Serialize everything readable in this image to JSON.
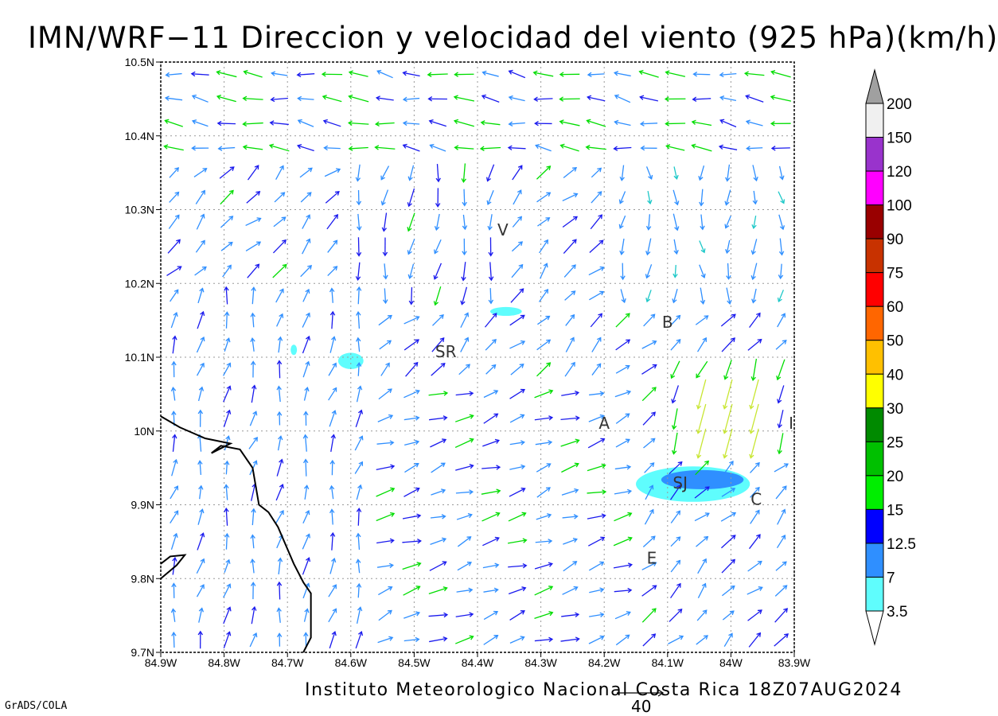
{
  "title": "IMN/WRF−11 Direccion y velocidad del viento (925 hPa)(km/h)",
  "footer": "Instituto Meteorologico Nacional Costa Rica 18Z07AUG2024",
  "credit": "GrADS/COLA",
  "reference_vector": {
    "value": 40,
    "label": "40"
  },
  "axes": {
    "lon_ticks": [
      "84.9W",
      "84.8W",
      "84.7W",
      "84.6W",
      "84.5W",
      "84.4W",
      "84.3W",
      "84.2W",
      "84.1W",
      "84W",
      "83.9W"
    ],
    "lat_ticks": [
      "10.5N",
      "10.4N",
      "10.3N",
      "10.2N",
      "10.1N",
      "10N",
      "9.9N",
      "9.8N",
      "9.7N"
    ],
    "lon_range": [
      -84.9,
      -83.9
    ],
    "lat_range": [
      9.7,
      10.5
    ],
    "grid": true
  },
  "colorbar": {
    "levels": [
      "3.5",
      "7",
      "12.5",
      "15",
      "20",
      "25",
      "30",
      "40",
      "50",
      "60",
      "75",
      "90",
      "100",
      "120",
      "150",
      "200"
    ],
    "colors": [
      "#ffffff",
      "#5ffdfd",
      "#2f8fff",
      "#0000ff",
      "#00ee00",
      "#00c000",
      "#008a00",
      "#ffff00",
      "#ffc000",
      "#ff6600",
      "#ff0000",
      "#c83200",
      "#990000",
      "#ff00ff",
      "#9933cc",
      "#f0f0f0",
      "#a0a0a0"
    ]
  },
  "cities": [
    {
      "label": "V",
      "lon": -84.36,
      "lat": 10.265
    },
    {
      "label": "B",
      "lon": -84.1,
      "lat": 10.14
    },
    {
      "label": "SR",
      "lon": -84.45,
      "lat": 10.1
    },
    {
      "label": "A",
      "lon": -84.2,
      "lat": 10.003
    },
    {
      "label": "SJ",
      "lon": -84.08,
      "lat": 9.922
    },
    {
      "label": "C",
      "lon": -83.96,
      "lat": 9.9
    },
    {
      "label": "E",
      "lon": -84.125,
      "lat": 9.82
    },
    {
      "label": "I",
      "lon": -83.905,
      "lat": 10.003
    }
  ],
  "shaded_regions": [
    {
      "color": "#5ffdfd",
      "center": [
        -84.06,
        9.928
      ],
      "radius": [
        0.09,
        0.024
      ]
    },
    {
      "color": "#2f8fff",
      "center": [
        -84.045,
        9.934
      ],
      "radius": [
        0.065,
        0.013
      ]
    },
    {
      "color": "#5ffdfd",
      "center": [
        -84.355,
        10.162
      ],
      "radius": [
        0.025,
        0.006
      ]
    },
    {
      "color": "#5ffdfd",
      "center": [
        -84.6,
        10.095
      ],
      "radius": [
        0.02,
        0.011
      ]
    },
    {
      "color": "#5ffdfd",
      "center": [
        -84.69,
        10.11
      ],
      "radius": [
        0.005,
        0.007
      ]
    }
  ],
  "coastlines": [
    [
      [
        -84.9,
        10.02
      ],
      [
        -84.87,
        10.005
      ],
      [
        -84.83,
        9.99
      ],
      [
        -84.79,
        9.983
      ],
      [
        -84.82,
        9.97
      ],
      [
        -84.805,
        9.98
      ],
      [
        -84.775,
        9.975
      ],
      [
        -84.755,
        9.95
      ],
      [
        -84.745,
        9.9
      ],
      [
        -84.73,
        9.89
      ],
      [
        -84.715,
        9.87
      ],
      [
        -84.7,
        9.84
      ],
      [
        -84.69,
        9.82
      ],
      [
        -84.675,
        9.795
      ],
      [
        -84.663,
        9.78
      ],
      [
        -84.663,
        9.72
      ],
      [
        -84.675,
        9.7
      ]
    ],
    [
      [
        -84.9,
        9.82
      ],
      [
        -84.885,
        9.83
      ],
      [
        -84.862,
        9.832
      ],
      [
        -84.875,
        9.818
      ],
      [
        -84.9,
        9.8
      ]
    ]
  ]
}
